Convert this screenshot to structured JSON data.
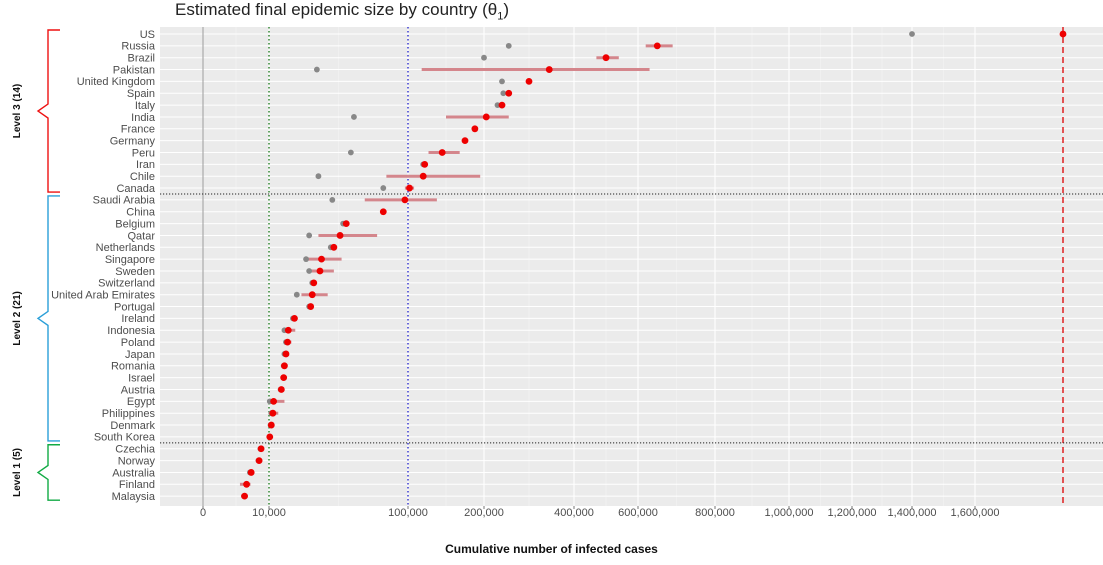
{
  "chart_data": {
    "type": "scatter",
    "title": "Estimated final epidemic size by country (θ",
    "title_sub": "1",
    "title_end": ")",
    "xlabel": "Cumulative number of infected cases",
    "ylabel": "",
    "x_tick_labels": [
      "0",
      "10,000",
      "100,000",
      "200,000",
      "400,000",
      "600,000",
      "800,000",
      "1,000,000",
      "1,200,000",
      "1,400,000",
      "1,600,000"
    ],
    "x_tick_values": [
      0,
      10000,
      100000,
      200000,
      400000,
      600000,
      800000,
      1000000,
      1200000,
      1400000,
      1600000
    ],
    "reference_lines": [
      {
        "value": 10000,
        "style": "dotted",
        "color": "#1a7a1a"
      },
      {
        "value": 100000,
        "style": "dotted",
        "color": "#2222cc"
      },
      {
        "value": 1700000,
        "style": "dashed",
        "color": "#dd0000"
      }
    ],
    "groups": [
      {
        "label": "Level 3  (14)",
        "color": "#ee1111"
      },
      {
        "label": "Level 2  (21)",
        "color": "#2a9fd8"
      },
      {
        "label": "Level 1  (5)",
        "color": "#11aa44"
      }
    ],
    "colors": {
      "estimate": "#ee0000",
      "interval": "#d4868c",
      "observed": "#888888"
    },
    "countries": [
      {
        "name": "US",
        "group": 0,
        "estimate": 1700000,
        "lower": 1700000,
        "upper": 1700000,
        "observed": 1400000
      },
      {
        "name": "Russia",
        "group": 0,
        "estimate": 650000,
        "lower": 620000,
        "upper": 690000,
        "observed": 255000
      },
      {
        "name": "Brazil",
        "group": 0,
        "estimate": 500000,
        "lower": 470000,
        "upper": 540000,
        "observed": 200000
      },
      {
        "name": "Pakistan",
        "group": 0,
        "estimate": 345000,
        "lower": 118000,
        "upper": 630000,
        "observed": 41000
      },
      {
        "name": "United Kingdom",
        "group": 0,
        "estimate": 300000,
        "lower": 298000,
        "upper": 302000,
        "observed": 240000
      },
      {
        "name": "Spain",
        "group": 0,
        "estimate": 255000,
        "lower": 250000,
        "upper": 258000,
        "observed": 243000
      },
      {
        "name": "Italy",
        "group": 0,
        "estimate": 240000,
        "lower": 235000,
        "upper": 243000,
        "observed": 230000
      },
      {
        "name": "India",
        "group": 0,
        "estimate": 205000,
        "lower": 150000,
        "upper": 255000,
        "observed": 65000
      },
      {
        "name": "France",
        "group": 0,
        "estimate": 188000,
        "lower": 185000,
        "upper": 190000,
        "observed": 188000
      },
      {
        "name": "Germany",
        "group": 0,
        "estimate": 175000,
        "lower": 172000,
        "upper": 178000,
        "observed": 175000
      },
      {
        "name": "Peru",
        "group": 0,
        "estimate": 145000,
        "lower": 127000,
        "upper": 168000,
        "observed": 63000
      },
      {
        "name": "Iran",
        "group": 0,
        "estimate": 122000,
        "lower": 118000,
        "upper": 124000,
        "observed": 120000
      },
      {
        "name": "Chile",
        "group": 0,
        "estimate": 120000,
        "lower": 86000,
        "upper": 195000,
        "observed": 42000
      },
      {
        "name": "Canada",
        "group": 0,
        "estimate": 102000,
        "lower": 98000,
        "upper": 108000,
        "observed": 84000
      },
      {
        "name": "Saudi Arabia",
        "group": 1,
        "estimate": 98000,
        "lower": 72000,
        "upper": 138000,
        "observed": 51000
      },
      {
        "name": "China",
        "group": 1,
        "estimate": 84000,
        "lower": 83000,
        "upper": 85000,
        "observed": 84000
      },
      {
        "name": "Belgium",
        "group": 1,
        "estimate": 60000,
        "lower": 59000,
        "upper": 61000,
        "observed": 58000
      },
      {
        "name": "Qatar",
        "group": 1,
        "estimate": 56000,
        "lower": 42000,
        "upper": 80000,
        "observed": 36000
      },
      {
        "name": "Netherlands",
        "group": 1,
        "estimate": 52000,
        "lower": 51000,
        "upper": 53000,
        "observed": 50000
      },
      {
        "name": "Singapore",
        "group": 1,
        "estimate": 44000,
        "lower": 34000,
        "upper": 57000,
        "observed": 34000
      },
      {
        "name": "Sweden",
        "group": 1,
        "estimate": 43000,
        "lower": 36000,
        "upper": 52000,
        "observed": 36000
      },
      {
        "name": "Switzerland",
        "group": 1,
        "estimate": 39000,
        "lower": 38500,
        "upper": 39500,
        "observed": 38000
      },
      {
        "name": "United Arab Emirates",
        "group": 1,
        "estimate": 38000,
        "lower": 31000,
        "upper": 48000,
        "observed": 28000
      },
      {
        "name": "Portugal",
        "group": 1,
        "estimate": 37000,
        "lower": 36500,
        "upper": 37500,
        "observed": 36000
      },
      {
        "name": "Ireland",
        "group": 1,
        "estimate": 26500,
        "lower": 25500,
        "upper": 27500,
        "observed": 25500
      },
      {
        "name": "Indonesia",
        "group": 1,
        "estimate": 22500,
        "lower": 19500,
        "upper": 27000,
        "observed": 20000
      },
      {
        "name": "Poland",
        "group": 1,
        "estimate": 22000,
        "lower": 20000,
        "upper": 24500,
        "observed": 21000
      },
      {
        "name": "Japan",
        "group": 1,
        "estimate": 21000,
        "lower": 19500,
        "upper": 22000,
        "observed": 20000
      },
      {
        "name": "Romania",
        "group": 1,
        "estimate": 20000,
        "lower": 18500,
        "upper": 22000,
        "observed": 19500
      },
      {
        "name": "Israel",
        "group": 1,
        "estimate": 19500,
        "lower": 19000,
        "upper": 20000,
        "observed": 19500
      },
      {
        "name": "Austria",
        "group": 1,
        "estimate": 18000,
        "lower": 17500,
        "upper": 18500,
        "observed": 17500
      },
      {
        "name": "Egypt",
        "group": 1,
        "estimate": 13000,
        "lower": 10500,
        "upper": 20000,
        "observed": 10500
      },
      {
        "name": "Philippines",
        "group": 1,
        "estimate": 12500,
        "lower": 11000,
        "upper": 16000,
        "observed": 11500
      },
      {
        "name": "Denmark",
        "group": 1,
        "estimate": 11500,
        "lower": 10500,
        "upper": 12500,
        "observed": 11000
      },
      {
        "name": "South Korea",
        "group": 1,
        "estimate": 10500,
        "lower": 10200,
        "upper": 10800,
        "observed": 10500
      },
      {
        "name": "Czechia",
        "group": 2,
        "estimate": 8800,
        "lower": 8500,
        "upper": 9100,
        "observed": 8700
      },
      {
        "name": "Norway",
        "group": 2,
        "estimate": 8500,
        "lower": 8300,
        "upper": 8700,
        "observed": 8400
      },
      {
        "name": "Australia",
        "group": 2,
        "estimate": 7300,
        "lower": 7000,
        "upper": 7600,
        "observed": 7100
      },
      {
        "name": "Finland",
        "group": 2,
        "estimate": 6600,
        "lower": 5600,
        "upper": 7200,
        "observed": 6600
      },
      {
        "name": "Malaysia",
        "group": 2,
        "estimate": 6300,
        "lower": 6000,
        "upper": 6600,
        "observed": 6200
      }
    ]
  }
}
